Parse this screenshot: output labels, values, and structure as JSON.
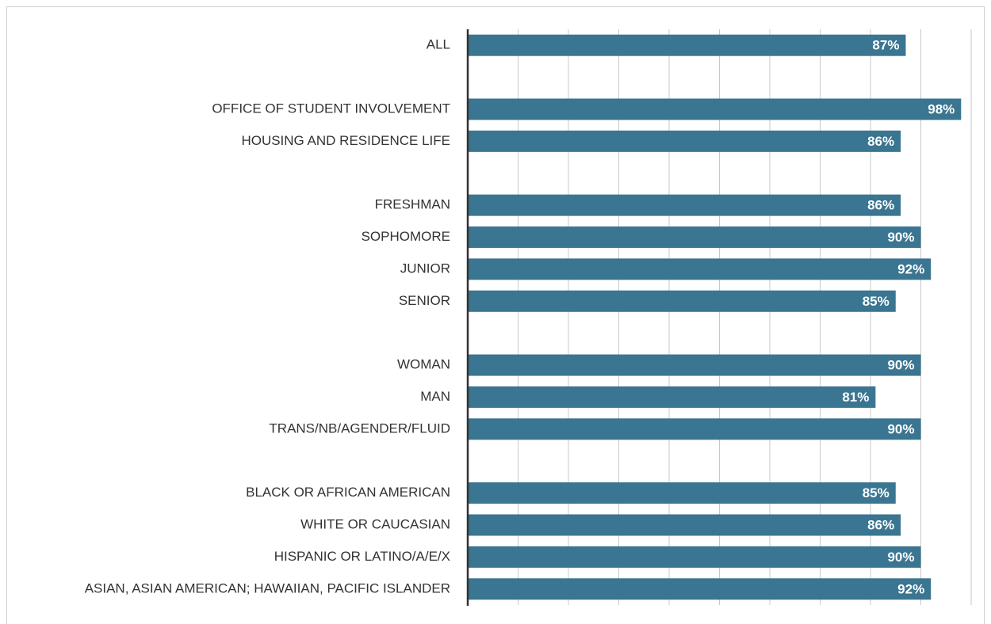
{
  "chart_data": {
    "type": "barh",
    "categories": [
      "ALL",
      null,
      "OFFICE OF STUDENT INVOLVEMENT",
      "HOUSING AND RESIDENCE LIFE",
      null,
      "FRESHMAN",
      "SOPHOMORE",
      "JUNIOR",
      "SENIOR",
      null,
      "WOMAN",
      "MAN",
      "TRANS/NB/AGENDER/FLUID",
      null,
      "BLACK OR AFRICAN AMERICAN",
      "WHITE OR CAUCASIAN",
      "HISPANIC OR LATINO/A/E/X",
      "ASIAN, ASIAN AMERICAN; HAWAIIAN, PACIFIC ISLANDER"
    ],
    "values": [
      87,
      null,
      98,
      86,
      null,
      86,
      90,
      92,
      85,
      null,
      90,
      81,
      90,
      null,
      85,
      86,
      90,
      92
    ],
    "value_labels": [
      "87%",
      null,
      "98%",
      "86%",
      null,
      "86%",
      "90%",
      "92%",
      "85%",
      null,
      "90%",
      "81%",
      "90%",
      null,
      "85%",
      "86%",
      "90%",
      "92%"
    ],
    "color": "#3a7591",
    "xlim": [
      0,
      100
    ],
    "xticks": [
      0,
      10,
      20,
      30,
      40,
      50,
      60,
      70,
      80,
      90,
      100
    ],
    "grid": true
  }
}
